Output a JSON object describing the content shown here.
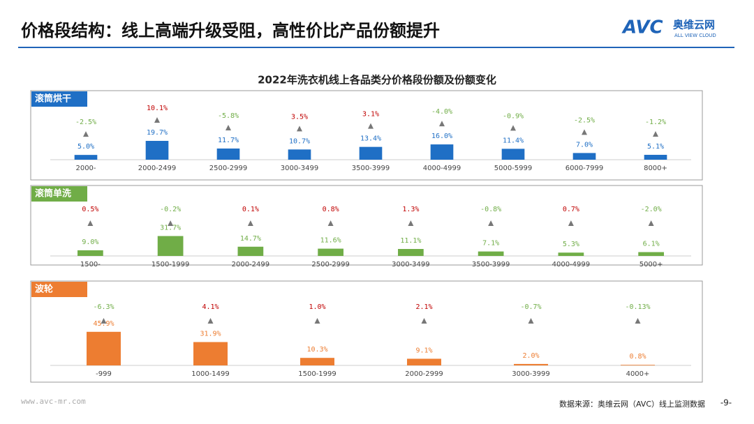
{
  "header": {
    "title": "价格段结构：线上高端升级受阻，高性价比产品份额提升",
    "logo": "AVC",
    "logo_cn": "奥维云网",
    "logo_en": "ALL VIEW CLOUD"
  },
  "heading": "2022年洗衣机线上各品类分价格段份额及份额变化",
  "chart_data": [
    {
      "type": "bar",
      "title": "滚筒烘干",
      "color": "#1f6fc5",
      "categories": [
        "2000-",
        "2000-2499",
        "2500-2999",
        "3000-3499",
        "3500-3999",
        "4000-4999",
        "5000-5999",
        "6000-7999",
        "8000+"
      ],
      "values": [
        5.0,
        19.7,
        11.7,
        10.7,
        13.4,
        16.0,
        11.4,
        7.0,
        5.1
      ],
      "value_labels": [
        "5.0%",
        "19.7%",
        "11.7%",
        "10.7%",
        "13.4%",
        "16.0%",
        "11.4%",
        "7.0%",
        "5.1%"
      ],
      "changes": [
        -2.5,
        10.1,
        -5.8,
        3.5,
        3.1,
        -4.0,
        -0.9,
        -2.5,
        -1.2
      ],
      "change_labels": [
        "-2.5%",
        "10.1%",
        "-5.8%",
        "3.5%",
        "3.1%",
        "-4.0%",
        "-0.9%",
        "-2.5%",
        "-1.2%"
      ],
      "change_colors": {
        "up": "#c00000",
        "down": "#70ad47"
      }
    },
    {
      "type": "bar",
      "title": "滚筒单洗",
      "color": "#70ad47",
      "categories": [
        "1500-",
        "1500-1999",
        "2000-2499",
        "2500-2999",
        "3000-3499",
        "3500-3999",
        "4000-4999",
        "5000+"
      ],
      "values": [
        9.0,
        31.7,
        14.7,
        11.6,
        11.1,
        7.1,
        5.3,
        6.1
      ],
      "value_labels": [
        "9.0%",
        "31.7%",
        "14.7%",
        "11.6%",
        "11.1%",
        "7.1%",
        "5.3%",
        "6.1%"
      ],
      "changes": [
        0.5,
        -0.2,
        0.1,
        0.8,
        1.3,
        -0.8,
        0.7,
        -2.0
      ],
      "change_labels": [
        "0.5%",
        "-0.2%",
        "0.1%",
        "0.8%",
        "1.3%",
        "-0.8%",
        "0.7%",
        "-2.0%"
      ],
      "change_colors": {
        "up": "#c00000",
        "down": "#70ad47"
      }
    },
    {
      "type": "bar",
      "title": "波轮",
      "color": "#ed7d31",
      "categories": [
        "-999",
        "1000-1499",
        "1500-1999",
        "2000-2999",
        "3000-3999",
        "4000+"
      ],
      "values": [
        45.9,
        31.9,
        10.3,
        9.1,
        2.0,
        0.8
      ],
      "value_labels": [
        "45.9%",
        "31.9%",
        "10.3%",
        "9.1%",
        "2.0%",
        "0.8%"
      ],
      "changes": [
        -6.3,
        4.1,
        1.0,
        2.1,
        -0.7,
        -0.13
      ],
      "change_labels": [
        "-6.3%",
        "4.1%",
        "1.0%",
        "2.1%",
        "-0.7%",
        "-0.13%"
      ],
      "change_colors": {
        "up": "#c00000",
        "down": "#70ad47"
      }
    }
  ],
  "footer": {
    "website": "www.avc-mr.com",
    "source": "数据来源：奥维云网（AVC）线上监测数据",
    "page": "-9-"
  }
}
